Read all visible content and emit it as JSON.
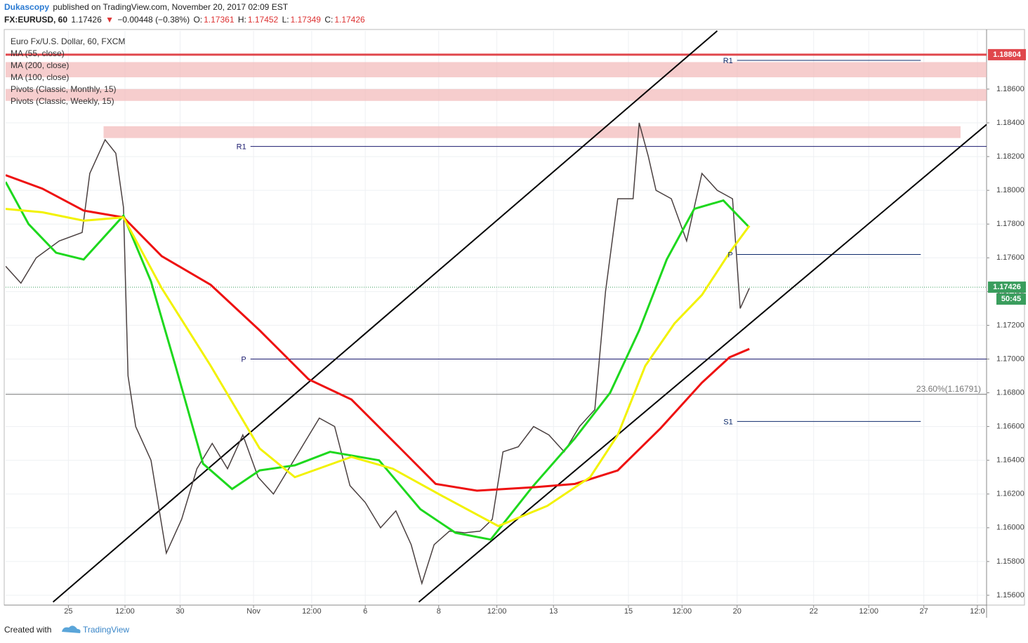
{
  "header": {
    "author": "Dukascopy",
    "published": "published on TradingView.com, November 20, 2017 02:09 EST",
    "symbol": "FX:EURUSD, 60",
    "last": "1.17426",
    "change": "−0.00448 (−0.38%)",
    "ohlc": [
      {
        "key": "O:",
        "value": "1.17361"
      },
      {
        "key": "H:",
        "value": "1.17452"
      },
      {
        "key": "L:",
        "value": "1.17349"
      },
      {
        "key": "C:",
        "value": "1.17426"
      }
    ]
  },
  "footer": {
    "created": "Created with",
    "brand": "TradingView"
  },
  "chart_data": {
    "type": "line",
    "xlim": [
      0,
      641
    ],
    "ylim": [
      1.1555,
      1.18945
    ],
    "xticks": [
      {
        "value": 41,
        "label": "25"
      },
      {
        "value": 78,
        "label": "12:00"
      },
      {
        "value": 114,
        "label": "30"
      },
      {
        "value": 162,
        "label": "Nov"
      },
      {
        "value": 200,
        "label": "12:00"
      },
      {
        "value": 235,
        "label": "6"
      },
      {
        "value": 283,
        "label": "8"
      },
      {
        "value": 321,
        "label": "12:00"
      },
      {
        "value": 358,
        "label": "13"
      },
      {
        "value": 407,
        "label": "15"
      },
      {
        "value": 442,
        "label": "12:00"
      },
      {
        "value": 478,
        "label": "20"
      },
      {
        "value": 528,
        "label": "22"
      },
      {
        "value": 564,
        "label": "12:00"
      },
      {
        "value": 600,
        "label": "27"
      },
      {
        "value": 635,
        "label": "12:0"
      }
    ],
    "yticks": [
      {
        "value": 1.156,
        "label": "1.15600"
      },
      {
        "value": 1.158,
        "label": "1.15800"
      },
      {
        "value": 1.16,
        "label": "1.16000"
      },
      {
        "value": 1.162,
        "label": "1.16200"
      },
      {
        "value": 1.164,
        "label": "1.16400"
      },
      {
        "value": 1.166,
        "label": "1.16600"
      },
      {
        "value": 1.168,
        "label": "1.16800"
      },
      {
        "value": 1.17,
        "label": "1.17000"
      },
      {
        "value": 1.172,
        "label": "1.17200"
      },
      {
        "value": 1.174,
        "label": "1.17400"
      },
      {
        "value": 1.176,
        "label": "1.17600"
      },
      {
        "value": 1.178,
        "label": "1.17800"
      },
      {
        "value": 1.18,
        "label": "1.18000"
      },
      {
        "value": 1.182,
        "label": "1.18200"
      },
      {
        "value": 1.184,
        "label": "1.18400"
      },
      {
        "value": 1.186,
        "label": "1.18600"
      }
    ],
    "grid": true,
    "series": [
      {
        "name": "Euro Fx/U.S. Dollar, 60, FXCM",
        "color": "#4a4040",
        "x": [
          0,
          10,
          20,
          35,
          50,
          55,
          65,
          72,
          77,
          80,
          85,
          95,
          105,
          115,
          125,
          135,
          145,
          155,
          165,
          175,
          185,
          195,
          205,
          215,
          225,
          235,
          245,
          255,
          265,
          272,
          280,
          290,
          300,
          310,
          318,
          325,
          335,
          345,
          355,
          365,
          375,
          385,
          392,
          400,
          410,
          414,
          420,
          425,
          435,
          445,
          455,
          465,
          475,
          480,
          486
        ],
        "values": [
          1.1755,
          1.1745,
          1.176,
          1.177,
          1.1775,
          1.181,
          1.183,
          1.1822,
          1.179,
          1.169,
          1.166,
          1.164,
          1.1585,
          1.1605,
          1.1635,
          1.165,
          1.1635,
          1.1655,
          1.163,
          1.162,
          1.1635,
          1.165,
          1.1665,
          1.166,
          1.1625,
          1.1615,
          1.16,
          1.161,
          1.159,
          1.1567,
          1.159,
          1.1598,
          1.1597,
          1.1598,
          1.1605,
          1.1645,
          1.1648,
          1.166,
          1.1655,
          1.1645,
          1.166,
          1.167,
          1.174,
          1.1795,
          1.1795,
          1.184,
          1.182,
          1.18,
          1.1795,
          1.177,
          1.181,
          1.18,
          1.1795,
          1.173,
          1.1742
        ]
      },
      {
        "name": "MA (55, close)",
        "color": "#1ed81e",
        "x": [
          0,
          15,
          33,
          51,
          77,
          95,
          111,
          129,
          148,
          166,
          189,
          212,
          244,
          271,
          294,
          317,
          344,
          372,
          395,
          414,
          432,
          450,
          469,
          486
        ],
        "values": [
          1.1805,
          1.178,
          1.1763,
          1.1759,
          1.1785,
          1.1746,
          1.1696,
          1.1638,
          1.1623,
          1.1634,
          1.1637,
          1.1645,
          1.164,
          1.1611,
          1.1597,
          1.1593,
          1.1624,
          1.1653,
          1.168,
          1.1717,
          1.1759,
          1.1789,
          1.1794,
          1.1778
        ]
      },
      {
        "name": "MA (200, close)",
        "color": "#ee1111",
        "x": [
          0,
          24,
          51,
          77,
          102,
          134,
          166,
          198,
          226,
          258,
          281,
          308,
          345,
          372,
          400,
          428,
          455,
          473,
          486
        ],
        "values": [
          1.1809,
          1.1801,
          1.1788,
          1.1784,
          1.1761,
          1.1744,
          1.1717,
          1.1688,
          1.1676,
          1.1647,
          1.1626,
          1.1622,
          1.1624,
          1.1626,
          1.1634,
          1.1659,
          1.1686,
          1.1701,
          1.1706
        ]
      },
      {
        "name": "MA (100, close)",
        "color": "#f2f200",
        "x": [
          0,
          24,
          51,
          77,
          102,
          134,
          166,
          189,
          226,
          253,
          285,
          322,
          354,
          382,
          400,
          418,
          437,
          455,
          473,
          486
        ],
        "values": [
          1.1789,
          1.1787,
          1.1782,
          1.1784,
          1.1742,
          1.1696,
          1.1647,
          1.163,
          1.1642,
          1.1635,
          1.1619,
          1.1601,
          1.1613,
          1.163,
          1.1655,
          1.1696,
          1.1721,
          1.1738,
          1.1763,
          1.1779
        ]
      }
    ],
    "pivots": [
      {
        "name": "Pivots (Classic, Monthly, 15)",
        "color": "#0d2a6b",
        "x": [
          478,
          598
        ],
        "levels": [
          {
            "label": "R1",
            "value": 1.1877
          },
          {
            "label": "P",
            "value": 1.1762
          },
          {
            "label": "S1",
            "value": 1.1663
          }
        ]
      },
      {
        "name": "Pivots (Classic, Weekly, 15)",
        "color": "#1a1a6e",
        "x": [
          160,
          641
        ],
        "levels": [
          {
            "label": "R1",
            "value": 1.1826
          },
          {
            "label": "P",
            "value": 1.17
          }
        ]
      }
    ],
    "zones": [
      {
        "y": [
          1.1867,
          1.1876
        ]
      },
      {
        "y": [
          1.1853,
          1.186
        ]
      },
      {
        "y": [
          1.1831,
          1.1838
        ],
        "x": [
          64,
          624
        ]
      }
    ],
    "trendlines": [
      {
        "x": [
          31,
          465
        ],
        "y": [
          1.1556,
          1.18945
        ]
      },
      {
        "x": [
          270,
          641
        ],
        "y": [
          1.1556,
          1.1839
        ]
      }
    ],
    "hlines": [
      {
        "value": 1.18804,
        "label": "1.18804",
        "color": "#e0474c"
      },
      {
        "value": 1.17426,
        "label": "1.17426",
        "color": "#3a9d5d",
        "countdown": "50:45"
      }
    ],
    "fib": {
      "value": 1.16791,
      "label": "23.60%(1.16791)"
    }
  }
}
